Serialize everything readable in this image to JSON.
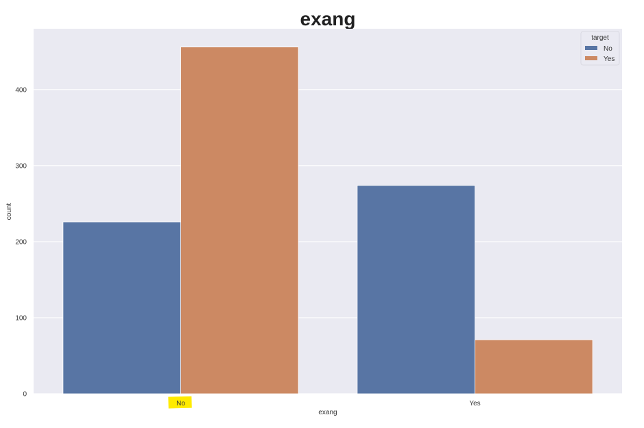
{
  "chart_data": {
    "type": "bar",
    "title": "exang",
    "xlabel": "exang",
    "ylabel": "count",
    "categories": [
      "No",
      "Yes"
    ],
    "series": [
      {
        "name": "No",
        "values": [
          226,
          274
        ],
        "color": "#5875a4"
      },
      {
        "name": "Yes",
        "values": [
          456,
          71
        ],
        "color": "#cc8963"
      }
    ],
    "ylim": [
      0,
      480
    ],
    "yticks": [
      0,
      100,
      200,
      300,
      400
    ],
    "grid": true,
    "background_color": "#eaeaf2",
    "legend": {
      "title": "target",
      "placement": "top-right"
    },
    "highlight": {
      "category": "No",
      "color": "#ffeb00"
    }
  }
}
